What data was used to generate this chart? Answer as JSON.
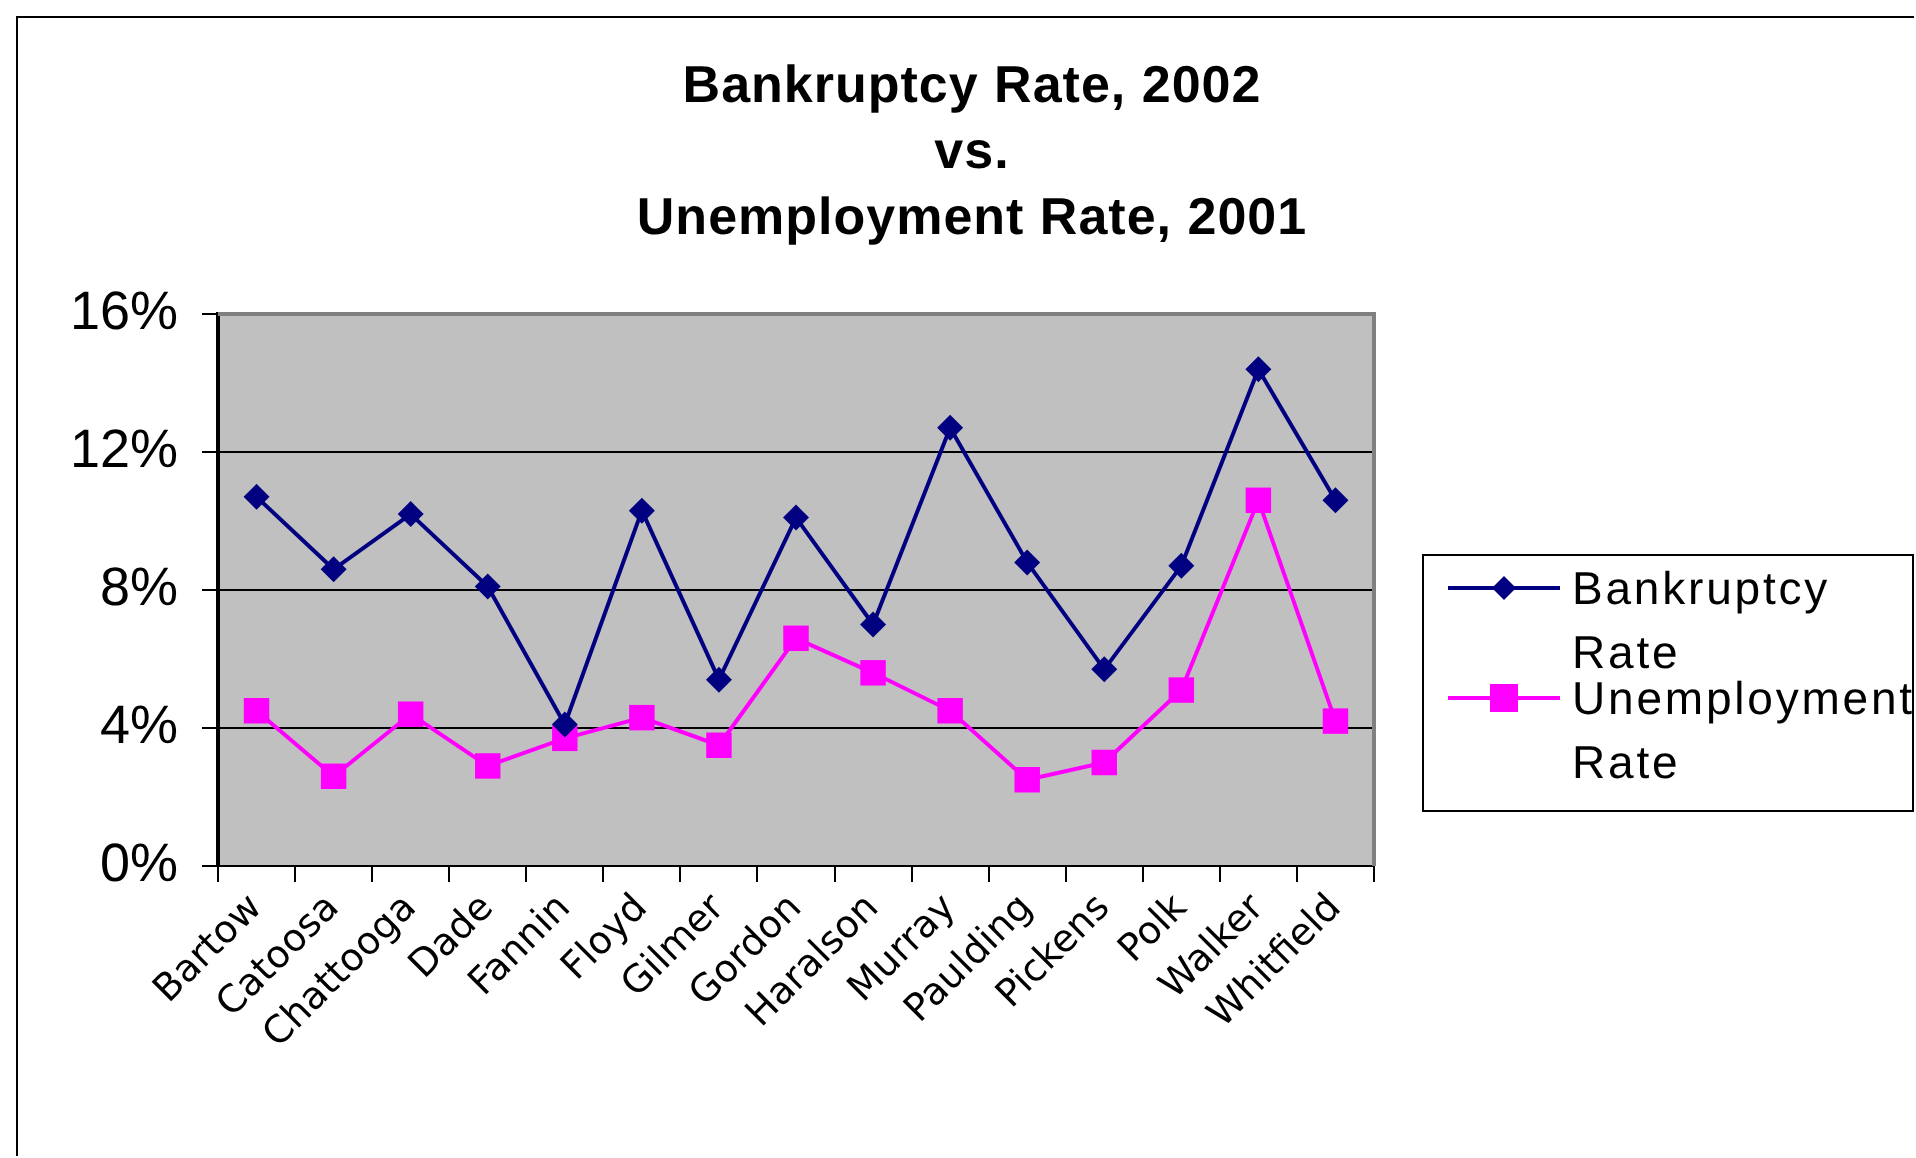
{
  "chart_data": {
    "type": "line",
    "title": "Bankruptcy Rate, 2002\nvs.\nUnemployment Rate, 2001",
    "categories": [
      "Bartow",
      "Catoosa",
      "Chattooga",
      "Dade",
      "Fannin",
      "Floyd",
      "Gilmer",
      "Gordon",
      "Haralson",
      "Murray",
      "Paulding",
      "Pickens",
      "Polk",
      "Walker",
      "Whitfield"
    ],
    "series": [
      {
        "name": "Bankruptcy Rate",
        "color": "#000080",
        "marker": "diamond",
        "values": [
          10.7,
          8.6,
          10.2,
          8.1,
          4.1,
          10.3,
          5.4,
          10.1,
          7.0,
          12.7,
          8.8,
          5.7,
          8.7,
          14.4,
          10.6
        ]
      },
      {
        "name": "Unemployment Rate",
        "color": "#ff00ff",
        "marker": "square",
        "values": [
          4.5,
          2.6,
          4.4,
          2.9,
          3.7,
          4.3,
          3.5,
          6.6,
          5.6,
          4.5,
          2.5,
          3.0,
          5.1,
          10.6,
          4.2
        ]
      }
    ],
    "ylim": [
      0,
      16
    ],
    "yticks": [
      {
        "value": 0,
        "label": "0%"
      },
      {
        "value": 4,
        "label": "4%"
      },
      {
        "value": 8,
        "label": "8%"
      },
      {
        "value": 12,
        "label": "12%"
      },
      {
        "value": 16,
        "label": "16%"
      }
    ],
    "grid": "y",
    "legend": "right"
  }
}
